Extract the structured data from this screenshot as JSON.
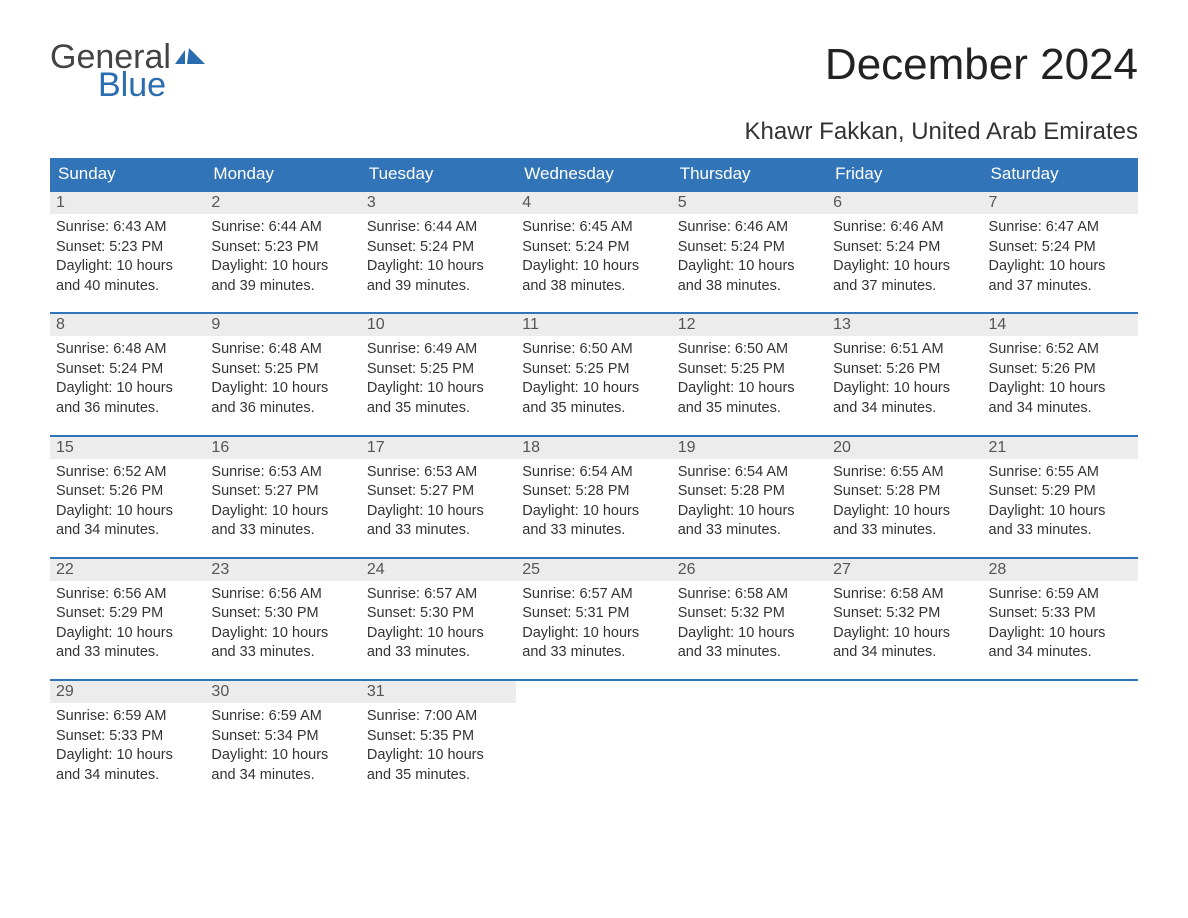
{
  "logo": {
    "word1": "General",
    "word2": "Blue",
    "flag_color": "#2a6cb0",
    "text_gray": "#444444"
  },
  "title": "December 2024",
  "location": "Khawr Fakkan, United Arab Emirates",
  "colors": {
    "header_bg": "#3274b8",
    "header_text": "#ffffff",
    "daynum_bg": "#ececec",
    "daynum_text": "#555555",
    "body_text": "#333333",
    "row_border": "#3274b8",
    "page_bg": "#ffffff"
  },
  "weekdays": [
    "Sunday",
    "Monday",
    "Tuesday",
    "Wednesday",
    "Thursday",
    "Friday",
    "Saturday"
  ],
  "weeks": [
    [
      {
        "n": "1",
        "sr": "Sunrise: 6:43 AM",
        "ss": "Sunset: 5:23 PM",
        "d1": "Daylight: 10 hours",
        "d2": "and 40 minutes."
      },
      {
        "n": "2",
        "sr": "Sunrise: 6:44 AM",
        "ss": "Sunset: 5:23 PM",
        "d1": "Daylight: 10 hours",
        "d2": "and 39 minutes."
      },
      {
        "n": "3",
        "sr": "Sunrise: 6:44 AM",
        "ss": "Sunset: 5:24 PM",
        "d1": "Daylight: 10 hours",
        "d2": "and 39 minutes."
      },
      {
        "n": "4",
        "sr": "Sunrise: 6:45 AM",
        "ss": "Sunset: 5:24 PM",
        "d1": "Daylight: 10 hours",
        "d2": "and 38 minutes."
      },
      {
        "n": "5",
        "sr": "Sunrise: 6:46 AM",
        "ss": "Sunset: 5:24 PM",
        "d1": "Daylight: 10 hours",
        "d2": "and 38 minutes."
      },
      {
        "n": "6",
        "sr": "Sunrise: 6:46 AM",
        "ss": "Sunset: 5:24 PM",
        "d1": "Daylight: 10 hours",
        "d2": "and 37 minutes."
      },
      {
        "n": "7",
        "sr": "Sunrise: 6:47 AM",
        "ss": "Sunset: 5:24 PM",
        "d1": "Daylight: 10 hours",
        "d2": "and 37 minutes."
      }
    ],
    [
      {
        "n": "8",
        "sr": "Sunrise: 6:48 AM",
        "ss": "Sunset: 5:24 PM",
        "d1": "Daylight: 10 hours",
        "d2": "and 36 minutes."
      },
      {
        "n": "9",
        "sr": "Sunrise: 6:48 AM",
        "ss": "Sunset: 5:25 PM",
        "d1": "Daylight: 10 hours",
        "d2": "and 36 minutes."
      },
      {
        "n": "10",
        "sr": "Sunrise: 6:49 AM",
        "ss": "Sunset: 5:25 PM",
        "d1": "Daylight: 10 hours",
        "d2": "and 35 minutes."
      },
      {
        "n": "11",
        "sr": "Sunrise: 6:50 AM",
        "ss": "Sunset: 5:25 PM",
        "d1": "Daylight: 10 hours",
        "d2": "and 35 minutes."
      },
      {
        "n": "12",
        "sr": "Sunrise: 6:50 AM",
        "ss": "Sunset: 5:25 PM",
        "d1": "Daylight: 10 hours",
        "d2": "and 35 minutes."
      },
      {
        "n": "13",
        "sr": "Sunrise: 6:51 AM",
        "ss": "Sunset: 5:26 PM",
        "d1": "Daylight: 10 hours",
        "d2": "and 34 minutes."
      },
      {
        "n": "14",
        "sr": "Sunrise: 6:52 AM",
        "ss": "Sunset: 5:26 PM",
        "d1": "Daylight: 10 hours",
        "d2": "and 34 minutes."
      }
    ],
    [
      {
        "n": "15",
        "sr": "Sunrise: 6:52 AM",
        "ss": "Sunset: 5:26 PM",
        "d1": "Daylight: 10 hours",
        "d2": "and 34 minutes."
      },
      {
        "n": "16",
        "sr": "Sunrise: 6:53 AM",
        "ss": "Sunset: 5:27 PM",
        "d1": "Daylight: 10 hours",
        "d2": "and 33 minutes."
      },
      {
        "n": "17",
        "sr": "Sunrise: 6:53 AM",
        "ss": "Sunset: 5:27 PM",
        "d1": "Daylight: 10 hours",
        "d2": "and 33 minutes."
      },
      {
        "n": "18",
        "sr": "Sunrise: 6:54 AM",
        "ss": "Sunset: 5:28 PM",
        "d1": "Daylight: 10 hours",
        "d2": "and 33 minutes."
      },
      {
        "n": "19",
        "sr": "Sunrise: 6:54 AM",
        "ss": "Sunset: 5:28 PM",
        "d1": "Daylight: 10 hours",
        "d2": "and 33 minutes."
      },
      {
        "n": "20",
        "sr": "Sunrise: 6:55 AM",
        "ss": "Sunset: 5:28 PM",
        "d1": "Daylight: 10 hours",
        "d2": "and 33 minutes."
      },
      {
        "n": "21",
        "sr": "Sunrise: 6:55 AM",
        "ss": "Sunset: 5:29 PM",
        "d1": "Daylight: 10 hours",
        "d2": "and 33 minutes."
      }
    ],
    [
      {
        "n": "22",
        "sr": "Sunrise: 6:56 AM",
        "ss": "Sunset: 5:29 PM",
        "d1": "Daylight: 10 hours",
        "d2": "and 33 minutes."
      },
      {
        "n": "23",
        "sr": "Sunrise: 6:56 AM",
        "ss": "Sunset: 5:30 PM",
        "d1": "Daylight: 10 hours",
        "d2": "and 33 minutes."
      },
      {
        "n": "24",
        "sr": "Sunrise: 6:57 AM",
        "ss": "Sunset: 5:30 PM",
        "d1": "Daylight: 10 hours",
        "d2": "and 33 minutes."
      },
      {
        "n": "25",
        "sr": "Sunrise: 6:57 AM",
        "ss": "Sunset: 5:31 PM",
        "d1": "Daylight: 10 hours",
        "d2": "and 33 minutes."
      },
      {
        "n": "26",
        "sr": "Sunrise: 6:58 AM",
        "ss": "Sunset: 5:32 PM",
        "d1": "Daylight: 10 hours",
        "d2": "and 33 minutes."
      },
      {
        "n": "27",
        "sr": "Sunrise: 6:58 AM",
        "ss": "Sunset: 5:32 PM",
        "d1": "Daylight: 10 hours",
        "d2": "and 34 minutes."
      },
      {
        "n": "28",
        "sr": "Sunrise: 6:59 AM",
        "ss": "Sunset: 5:33 PM",
        "d1": "Daylight: 10 hours",
        "d2": "and 34 minutes."
      }
    ],
    [
      {
        "n": "29",
        "sr": "Sunrise: 6:59 AM",
        "ss": "Sunset: 5:33 PM",
        "d1": "Daylight: 10 hours",
        "d2": "and 34 minutes."
      },
      {
        "n": "30",
        "sr": "Sunrise: 6:59 AM",
        "ss": "Sunset: 5:34 PM",
        "d1": "Daylight: 10 hours",
        "d2": "and 34 minutes."
      },
      {
        "n": "31",
        "sr": "Sunrise: 7:00 AM",
        "ss": "Sunset: 5:35 PM",
        "d1": "Daylight: 10 hours",
        "d2": "and 35 minutes."
      },
      null,
      null,
      null,
      null
    ]
  ]
}
